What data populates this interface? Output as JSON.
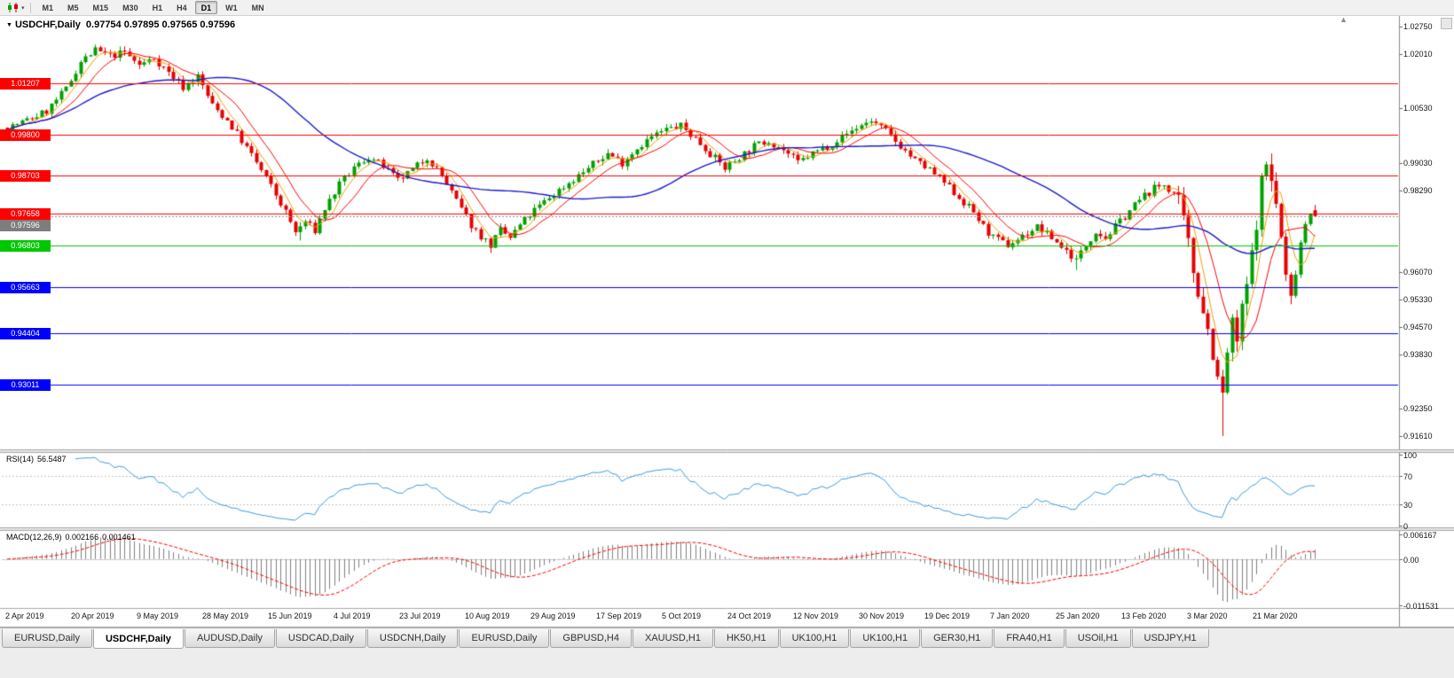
{
  "toolbar": {
    "timeframes": [
      "M1",
      "M5",
      "M15",
      "M30",
      "H1",
      "H4",
      "D1",
      "W1",
      "MN"
    ],
    "active": "D1"
  },
  "icons": {
    "chart_type": "candlestick-chart-icon",
    "dropdown_glyph": "▾",
    "title_marker_glyph": "▼",
    "shift_marker_glyph": "▲"
  },
  "chart": {
    "title": "USDCHF,Daily",
    "ohlc": "0.97754 0.97895 0.97565 0.97596"
  },
  "panels": {
    "rsi": {
      "name": "RSI(14)",
      "value": "56.5487",
      "ticks": [
        {
          "v": 100,
          "label": "100"
        },
        {
          "v": 70,
          "label": "70"
        },
        {
          "v": 30,
          "label": "30"
        },
        {
          "v": 0,
          "label": "0"
        }
      ]
    },
    "macd": {
      "name": "MACD(12,26,9)",
      "main": "0.002166",
      "signal": "0.001461",
      "ticks": [
        {
          "v": 0.006167,
          "label": "0.006167"
        },
        {
          "v": 0,
          "label": "0.00"
        },
        {
          "v": -0.011531,
          "label": "-0.011531"
        }
      ]
    }
  },
  "price_axis": {
    "ticks": [
      1.0275,
      1.0201,
      1.0053,
      0.9903,
      0.9829,
      0.9607,
      0.9533,
      0.9457,
      0.9383,
      0.9235,
      0.9161
    ]
  },
  "levels": [
    {
      "price": 1.01207,
      "color": "#ff0000"
    },
    {
      "price": 0.998,
      "color": "#ff0000"
    },
    {
      "price": 0.98703,
      "color": "#ff0000"
    },
    {
      "price": 0.97658,
      "color": "#ff0000"
    },
    {
      "price": 0.96803,
      "color": "#00c800"
    },
    {
      "price": 0.95663,
      "color": "#0000ff"
    },
    {
      "price": 0.94404,
      "color": "#0000ff"
    },
    {
      "price": 0.93011,
      "color": "#0000ff"
    }
  ],
  "current_price": {
    "value": 0.97596,
    "box_color": "#7d7d7d",
    "line_color": "#909090"
  },
  "date_axis": [
    "2 Apr 2019",
    "20 Apr 2019",
    "9 May 2019",
    "28 May 2019",
    "15 Jun 2019",
    "4 Jul 2019",
    "23 Jul 2019",
    "10 Aug 2019",
    "29 Aug 2019",
    "17 Sep 2019",
    "5 Oct 2019",
    "24 Oct 2019",
    "12 Nov 2019",
    "30 Nov 2019",
    "19 Dec 2019",
    "7 Jan 2020",
    "25 Jan 2020",
    "13 Feb 2020",
    "3 Mar 2020",
    "21 Mar 2020"
  ],
  "tabs": [
    {
      "label": "EURUSD,Daily"
    },
    {
      "label": "USDCHF,Daily",
      "active": true
    },
    {
      "label": "AUDUSD,Daily"
    },
    {
      "label": "USDCAD,Daily"
    },
    {
      "label": "USDCNH,Daily"
    },
    {
      "label": "EURUSD,Daily"
    },
    {
      "label": "GBPUSD,H4"
    },
    {
      "label": "XAUUSD,H1"
    },
    {
      "label": "HK50,H1"
    },
    {
      "label": "UK100,H1"
    },
    {
      "label": "UK100,H1"
    },
    {
      "label": "GER30,H1"
    },
    {
      "label": "FRA40,H1"
    },
    {
      "label": "USOil,H1"
    },
    {
      "label": "USDJPY,H1"
    }
  ],
  "colors": {
    "up": "#00a000",
    "down": "#e60000",
    "rsi_line": "#3b9ce0",
    "rsi_level_dash": "#c6c6c6",
    "macd_hist": "#808080",
    "macd_signal": "#ff0000",
    "macd_zero": "#cccccc",
    "axis_border": "#8a8a8a",
    "splitter": "#a8a8a8",
    "splitter_fill": "#e6e6e6"
  },
  "chart_data": {
    "type": "candlestick",
    "symbol": "USDCHF",
    "timeframe": "Daily",
    "x_range": [
      "2 Apr 2019",
      "27 Mar 2020"
    ],
    "y_range": [
      0.9125,
      1.0287
    ],
    "last_ohlc": {
      "open": 0.97754,
      "high": 0.97895,
      "low": 0.97565,
      "close": 0.97596
    },
    "num_candles": 269,
    "seed": 7,
    "close_anchors": [
      [
        0,
        1.0
      ],
      [
        4,
        1.002
      ],
      [
        8,
        1.0045
      ],
      [
        12,
        1.0105
      ],
      [
        15,
        1.018
      ],
      [
        18,
        1.021
      ],
      [
        21,
        1.0195
      ],
      [
        24,
        1.0205
      ],
      [
        27,
        1.017
      ],
      [
        30,
        1.019
      ],
      [
        33,
        1.015
      ],
      [
        36,
        1.011
      ],
      [
        39,
        1.014
      ],
      [
        42,
        1.006
      ],
      [
        45,
        1.002
      ],
      [
        48,
        0.9965
      ],
      [
        51,
        0.9905
      ],
      [
        54,
        0.984
      ],
      [
        57,
        0.977
      ],
      [
        59,
        0.9715
      ],
      [
        61,
        0.9745
      ],
      [
        63,
        0.972
      ],
      [
        65,
        0.978
      ],
      [
        68,
        0.9845
      ],
      [
        71,
        0.989
      ],
      [
        74,
        0.992
      ],
      [
        77,
        0.9895
      ],
      [
        80,
        0.9855
      ],
      [
        83,
        0.9885
      ],
      [
        86,
        0.992
      ],
      [
        89,
        0.987
      ],
      [
        92,
        0.98
      ],
      [
        95,
        0.9735
      ],
      [
        97,
        0.9705
      ],
      [
        99,
        0.968
      ],
      [
        101,
        0.972
      ],
      [
        103,
        0.97
      ],
      [
        105,
        0.9735
      ],
      [
        108,
        0.9775
      ],
      [
        111,
        0.981
      ],
      [
        114,
        0.984
      ],
      [
        117,
        0.987
      ],
      [
        120,
        0.99
      ],
      [
        123,
        0.993
      ],
      [
        126,
        0.9905
      ],
      [
        129,
        0.9945
      ],
      [
        132,
        0.9975
      ],
      [
        135,
        0.9995
      ],
      [
        138,
        1.0005
      ],
      [
        141,
        0.997
      ],
      [
        144,
        0.993
      ],
      [
        147,
        0.989
      ],
      [
        150,
        0.992
      ],
      [
        153,
        0.995
      ],
      [
        156,
        0.9965
      ],
      [
        159,
        0.994
      ],
      [
        162,
        0.9905
      ],
      [
        165,
        0.993
      ],
      [
        168,
        0.995
      ],
      [
        171,
        0.9975
      ],
      [
        174,
        1.0
      ],
      [
        177,
        1.002
      ],
      [
        180,
        0.999
      ],
      [
        183,
        0.995
      ],
      [
        186,
        0.991
      ],
      [
        189,
        0.9885
      ],
      [
        192,
        0.985
      ],
      [
        195,
        0.981
      ],
      [
        198,
        0.977
      ],
      [
        200,
        0.973
      ],
      [
        202,
        0.97
      ],
      [
        205,
        0.968
      ],
      [
        208,
        0.9705
      ],
      [
        211,
        0.973
      ],
      [
        214,
        0.97
      ],
      [
        217,
        0.9665
      ],
      [
        219,
        0.964
      ],
      [
        221,
        0.968
      ],
      [
        223,
        0.972
      ],
      [
        225,
        0.97
      ],
      [
        227,
        0.973
      ],
      [
        229,
        0.976
      ],
      [
        231,
        0.979
      ],
      [
        233,
        0.9815
      ],
      [
        235,
        0.9835
      ],
      [
        237,
        0.9845
      ],
      [
        239,
        0.982
      ],
      [
        240,
        0.979
      ],
      [
        241,
        0.974
      ],
      [
        242,
        0.968
      ],
      [
        243,
        0.961
      ],
      [
        244,
        0.956
      ],
      [
        245,
        0.951
      ],
      [
        246,
        0.945
      ],
      [
        247,
        0.939
      ],
      [
        248,
        0.931
      ],
      [
        249,
        0.927
      ],
      [
        250,
        0.939
      ],
      [
        251,
        0.946
      ],
      [
        252,
        0.942
      ],
      [
        253,
        0.95
      ],
      [
        254,
        0.957
      ],
      [
        255,
        0.965
      ],
      [
        256,
        0.975
      ],
      [
        257,
        0.985
      ],
      [
        258,
        0.99
      ],
      [
        259,
        0.986
      ],
      [
        260,
        0.979
      ],
      [
        261,
        0.97
      ],
      [
        262,
        0.959
      ],
      [
        263,
        0.953
      ],
      [
        264,
        0.961
      ],
      [
        265,
        0.969
      ],
      [
        266,
        0.974
      ],
      [
        267,
        0.977
      ],
      [
        268,
        0.976
      ]
    ],
    "pins": [
      {
        "day": 18,
        "high": 1.0226
      },
      {
        "day": 60,
        "low": 0.9693
      },
      {
        "day": 99,
        "low": 0.9659
      },
      {
        "day": 219,
        "low": 0.9613
      },
      {
        "day": 249,
        "low": 0.9161
      },
      {
        "day": 258,
        "high": 0.9901
      }
    ],
    "volatility": {
      "base": 0.0013,
      "crash": 0.0035,
      "crash_start": 239,
      "crash_end": 263
    },
    "moving_averages": [
      {
        "period": 5,
        "color": "#f0a000",
        "width": 1
      },
      {
        "period": 10,
        "color": "#ff0000",
        "width": 1
      },
      {
        "period": 40,
        "color": "#1a1acd",
        "width": 1.4
      }
    ],
    "horizontal_levels": [
      1.01207,
      0.998,
      0.98703,
      0.97658,
      0.96803,
      0.95663,
      0.94404,
      0.93011
    ],
    "indicators": [
      {
        "name": "RSI",
        "period": 14,
        "last_value": 56.5487,
        "scale": [
          0,
          100
        ],
        "levels": [
          30,
          70
        ]
      },
      {
        "name": "MACD",
        "fast": 12,
        "slow": 26,
        "signal_period": 9,
        "main": 0.002166,
        "signal": 0.001461,
        "scale_max": 0.006167,
        "scale_min": -0.011531
      }
    ]
  }
}
